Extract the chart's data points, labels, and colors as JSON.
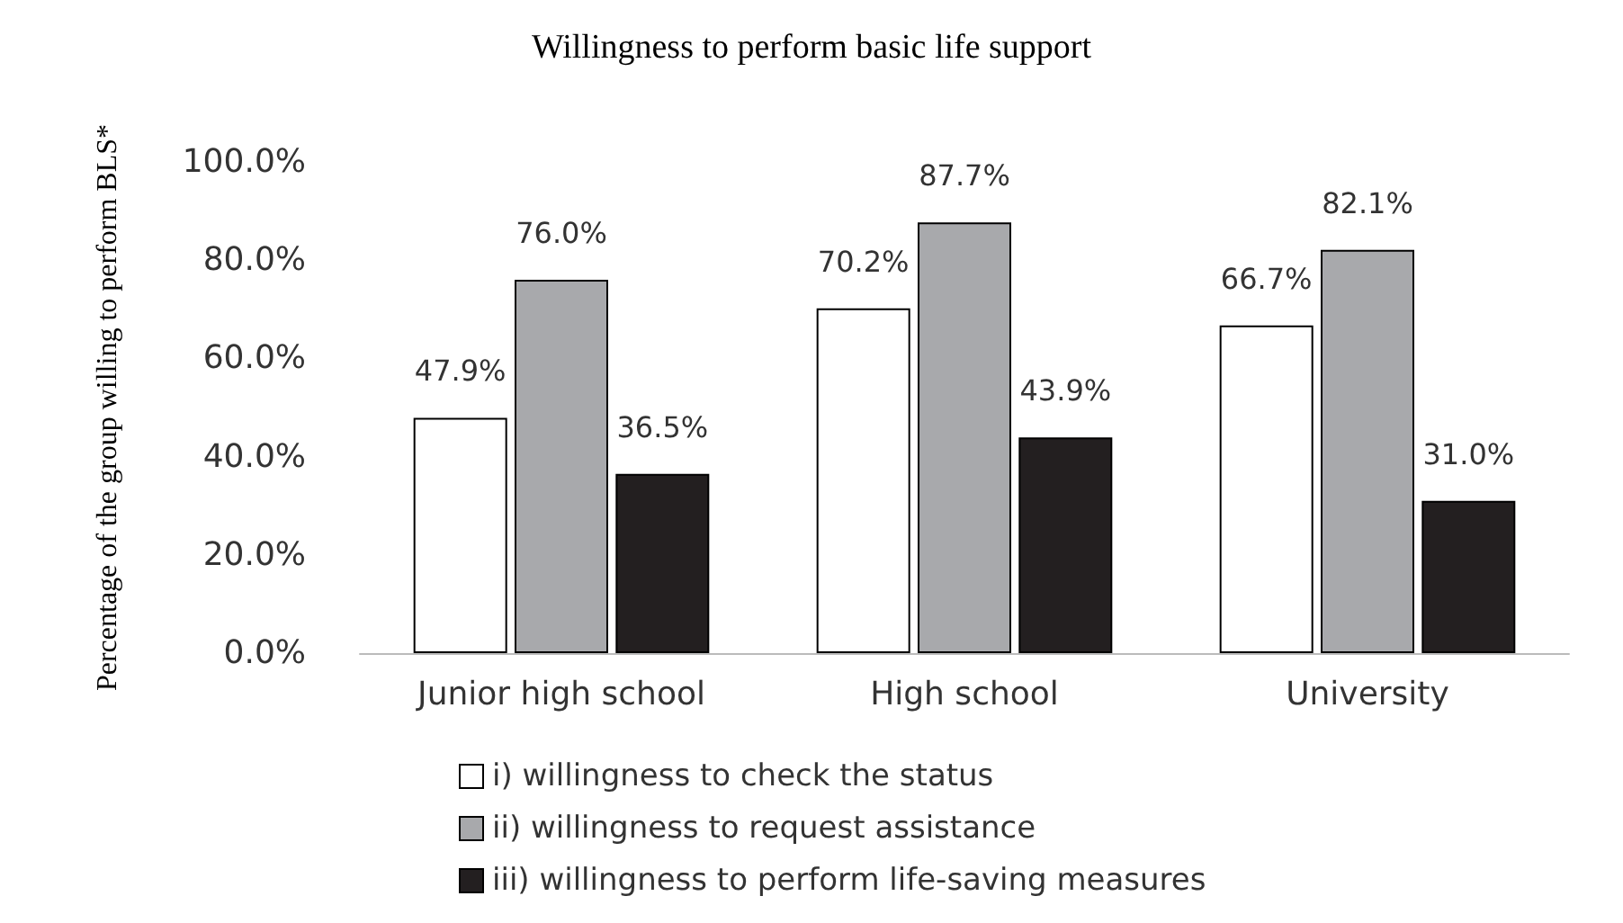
{
  "chart_data": {
    "type": "bar",
    "title": "Willingness to perform basic life support",
    "ylabel": "Percentage of the group willing to perform BLS*",
    "categories": [
      "Junior high school",
      "High school",
      "University"
    ],
    "series": [
      {
        "name": "i) willingness to check the status",
        "color": "#ffffff",
        "values": [
          47.9,
          70.2,
          66.7
        ],
        "value_labels": [
          "47.9%",
          "70.2%",
          "66.7%"
        ]
      },
      {
        "name": "ii) willingness to request assistance",
        "color": "#a8a9ac",
        "values": [
          76.0,
          87.7,
          82.1
        ],
        "value_labels": [
          "76.0%",
          "87.7%",
          "82.1%"
        ]
      },
      {
        "name": "iii) willingness to perform life-saving measures",
        "color": "#231f20",
        "values": [
          36.5,
          43.9,
          31.0
        ],
        "value_labels": [
          "36.5%",
          "43.9%",
          "31.0%"
        ]
      }
    ],
    "ylim": [
      0,
      100
    ],
    "yticks": [
      {
        "value": 0,
        "label": "0.0%"
      },
      {
        "value": 20,
        "label": "20.0%"
      },
      {
        "value": 40,
        "label": "40.0%"
      },
      {
        "value": 60,
        "label": "60.0%"
      },
      {
        "value": 80,
        "label": "80.0%"
      },
      {
        "value": 100,
        "label": "100.0%"
      }
    ],
    "grid": false,
    "legend": "bottom"
  }
}
